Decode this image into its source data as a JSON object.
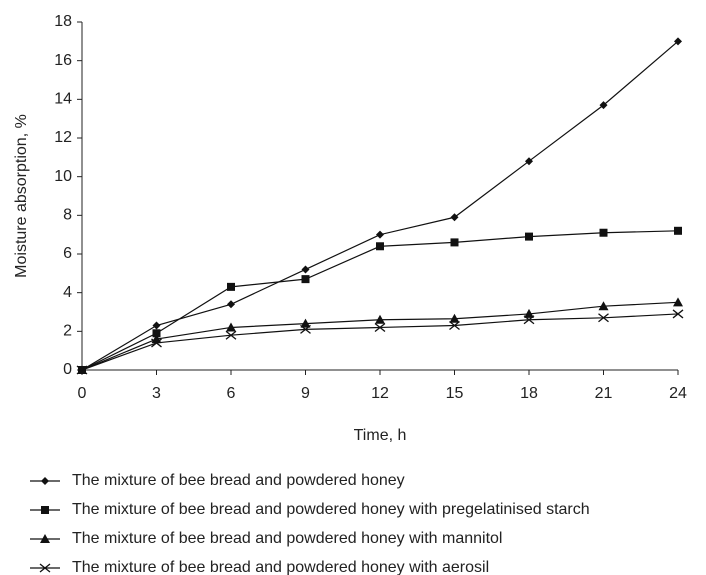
{
  "chart_data": {
    "type": "line",
    "x_label": "Time, h",
    "y_label": "Moisture absorption, %",
    "x": [
      0,
      3,
      6,
      9,
      12,
      15,
      18,
      21,
      24
    ],
    "xlim": [
      0,
      24
    ],
    "xticks": [
      0,
      3,
      6,
      9,
      12,
      15,
      18,
      21,
      24
    ],
    "ylim": [
      0,
      18
    ],
    "yticks": [
      0,
      2,
      4,
      6,
      8,
      10,
      12,
      14,
      16,
      18
    ],
    "grid": false,
    "legend": "bottom-left",
    "series": [
      {
        "name": "The mixture of bee bread and powdered honey",
        "color": "#111111",
        "marker": "diamond",
        "values": [
          0,
          2.3,
          3.4,
          5.2,
          7.0,
          7.9,
          10.8,
          13.7,
          17.0
        ]
      },
      {
        "name": "The mixture of bee bread and powdered honey with pregelatinised starch",
        "color": "#111111",
        "marker": "square",
        "values": [
          0,
          1.9,
          4.3,
          4.7,
          6.4,
          6.6,
          6.9,
          7.1,
          7.2
        ]
      },
      {
        "name": "The mixture of bee bread and powdered honey with mannitol",
        "color": "#111111",
        "marker": "triangle",
        "values": [
          0,
          1.6,
          2.2,
          2.4,
          2.6,
          2.65,
          2.9,
          3.3,
          3.5
        ]
      },
      {
        "name": "The mixture of bee bread and powdered honey with aerosil",
        "color": "#111111",
        "marker": "x",
        "values": [
          0,
          1.4,
          1.8,
          2.1,
          2.2,
          2.3,
          2.6,
          2.7,
          2.9
        ]
      }
    ]
  }
}
